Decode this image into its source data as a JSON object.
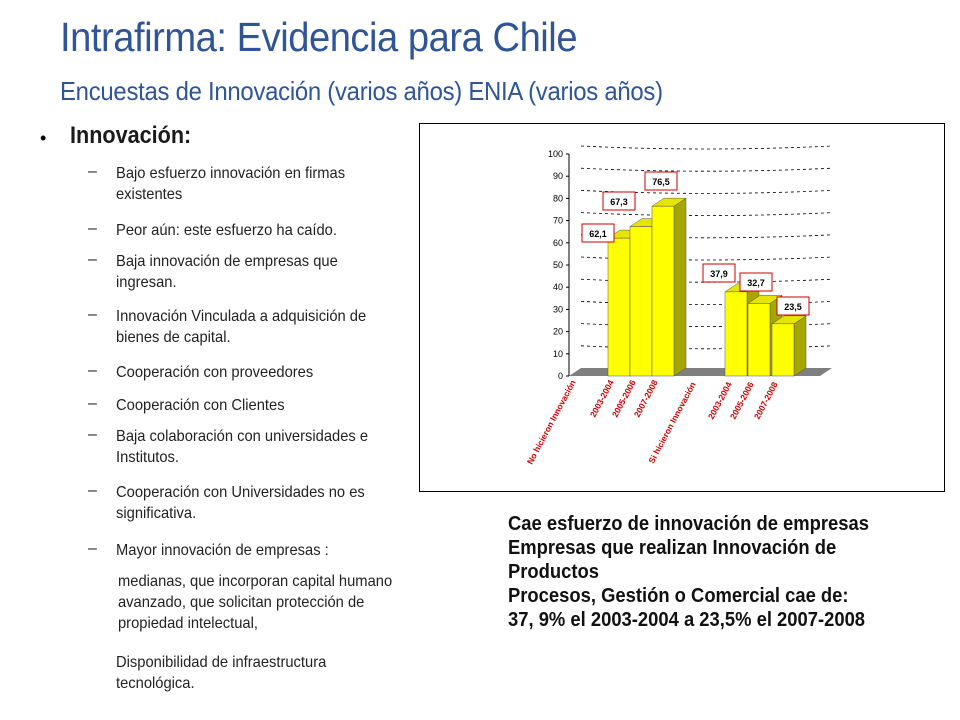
{
  "title": "Intrafirma: Evidencia para Chile",
  "subtitle": "Encuestas de Innovación (varios años) ENIA (varios años)",
  "bullet": {
    "symbol": "•",
    "heading": "Innovación:"
  },
  "items": [
    {
      "dash": "–",
      "text": "Bajo esfuerzo innovación en firmas existentes"
    },
    {
      "dash": "–",
      "text": "Peor aún: este esfuerzo ha  caído."
    },
    {
      "dash": "–",
      "text": "Baja innovación de empresas que ingresan."
    },
    {
      "dash": "–",
      "text": "Innovación Vinculada a adquisición de bienes de capital."
    },
    {
      "dash": "–",
      "text": "Cooperación con proveedores"
    },
    {
      "dash": "–",
      "text": "Cooperación con Clientes"
    },
    {
      "dash": "–",
      "text": "Baja colaboración con universidades e Institutos."
    },
    {
      "dash": "–",
      "text": "Cooperación con Universidades no es significativa."
    },
    {
      "dash": "–",
      "text": "Mayor innovación de empresas :"
    },
    {
      "dash": "",
      "text": "medianas, que incorporan capital humano avanzado, que solicitan protección de propiedad intelectual,"
    },
    {
      "dash": "",
      "text": "Disponibilidad de infraestructura tecnológica."
    }
  ],
  "summary": [
    "Cae esfuerzo de innovación de empresas",
    "Empresas que realizan Innovación de",
    "Productos",
    "Procesos, Gestión o Comercial cae de:",
    " 37, 9% el 2003-2004 a 23,5%  el 2007-2008"
  ],
  "chart_data": {
    "type": "bar",
    "categories": [
      "No hicieron Innovación",
      "2003-2004",
      "2005-2006",
      "2007-2008",
      "Si hicieron Innovación",
      "2003-2004",
      "2005-2006",
      "2007-2008"
    ],
    "values": [
      null,
      62.1,
      67.3,
      76.5,
      null,
      37.9,
      32.7,
      23.5
    ],
    "data_labels": [
      "",
      "62,1",
      "67,3",
      "76,5",
      "",
      "37,9",
      "32,7",
      "23,5"
    ],
    "yticks": [
      "0",
      "10",
      "20",
      "30",
      "40",
      "50",
      "60",
      "70",
      "80",
      "90",
      "100"
    ],
    "ylim": [
      0,
      100
    ],
    "grid": true,
    "bar_color": "#ffff00",
    "label_border_color": "#cc0000"
  }
}
